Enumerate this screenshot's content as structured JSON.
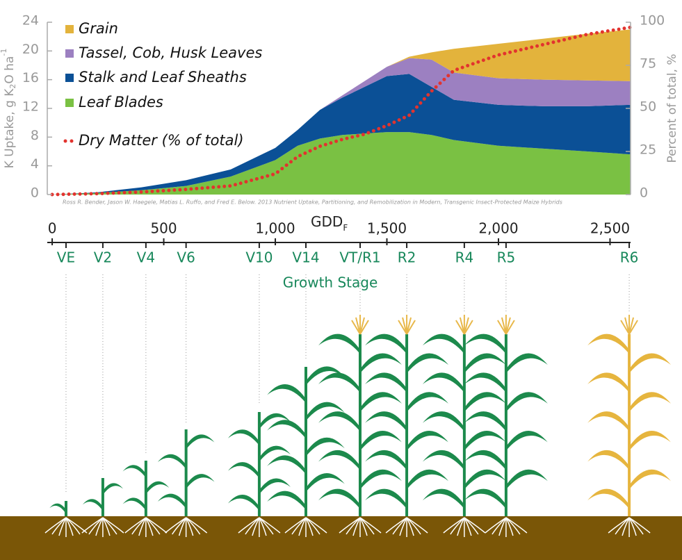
{
  "chart_data": {
    "type": "area",
    "ylabel": {
      "main": "K Uptake, g K",
      "sub": "2",
      "mid": "O ha",
      "sup": "-1"
    },
    "y2label": "Percent of total, %",
    "citation": "Ross R. Bender, Jason W. Haegele, Matias L. Ruffo, and Fred E. Below. 2013 Nutrient Uptake, Partitioning, and Remobilization in Modern, Transgenic Insect-Protected Maize Hybrids",
    "xlabel": {
      "main": "GDD",
      "sub": "F"
    },
    "x": [
      0,
      200,
      400,
      600,
      800,
      1000,
      1100,
      1200,
      1300,
      1400,
      1500,
      1600,
      1700,
      1800,
      2000,
      2200,
      2400,
      2590
    ],
    "xlim": [
      -22,
      2592
    ],
    "xticks": [
      0,
      500,
      {
        "value": 1000,
        "label": "1,000"
      },
      {
        "value": 1500,
        "label": "1,500"
      },
      {
        "value": 2000,
        "label": "2,000"
      },
      {
        "value": 2500,
        "label": "2,500"
      }
    ],
    "ylim": [
      0,
      24
    ],
    "yticks": [
      0,
      4,
      8,
      12,
      16,
      20,
      24
    ],
    "y2lim": [
      0,
      100
    ],
    "y2ticks": [
      0,
      25,
      50,
      75,
      100
    ],
    "series": [
      {
        "name": "Leaf Blades",
        "color": "#7ac143",
        "values": [
          0,
          0.2,
          0.6,
          1.2,
          2.5,
          4.8,
          6.8,
          7.8,
          8.3,
          8.5,
          8.7,
          8.7,
          8.3,
          7.6,
          6.8,
          6.4,
          6.0,
          5.6
        ]
      },
      {
        "name": "Stalk and Leaf Sheaths",
        "color": "#0b5096",
        "values": [
          0,
          0.1,
          0.4,
          0.8,
          1.0,
          1.7,
          2.2,
          4.0,
          5.2,
          6.5,
          7.8,
          8.1,
          6.7,
          5.6,
          5.7,
          5.9,
          6.3,
          6.9
        ]
      },
      {
        "name": "Tassel, Cob, Husk Leaves",
        "color": "#9c80c1",
        "values": [
          0,
          0,
          0,
          0,
          0,
          0,
          0,
          0,
          0.3,
          0.8,
          1.3,
          2.2,
          3.8,
          3.8,
          3.7,
          3.7,
          3.6,
          3.3
        ]
      },
      {
        "name": "Grain",
        "color": "#e3b33c",
        "values": [
          0,
          0,
          0,
          0,
          0,
          0,
          0,
          0,
          0,
          0,
          0,
          0.2,
          1.0,
          3.3,
          4.8,
          5.7,
          6.5,
          7.2
        ]
      },
      {
        "name": "Dry Matter (% of total)",
        "type": "line",
        "axis": "y2",
        "color": "#e2332e",
        "values": [
          0,
          0.5,
          1.5,
          3,
          5,
          12,
          22,
          28,
          32,
          35,
          40,
          46,
          60,
          72,
          81,
          87,
          93,
          97
        ]
      }
    ],
    "stages": {
      "title": "Growth Stage",
      "labels": [
        "VE",
        "V2",
        "V4",
        "V6",
        "V10",
        "V14",
        "VT/R1",
        "R2",
        "R4",
        "R5",
        "R6"
      ],
      "x": [
        62,
        227,
        420,
        600,
        928,
        1137,
        1380,
        1589,
        1847,
        2034,
        2586
      ]
    }
  }
}
